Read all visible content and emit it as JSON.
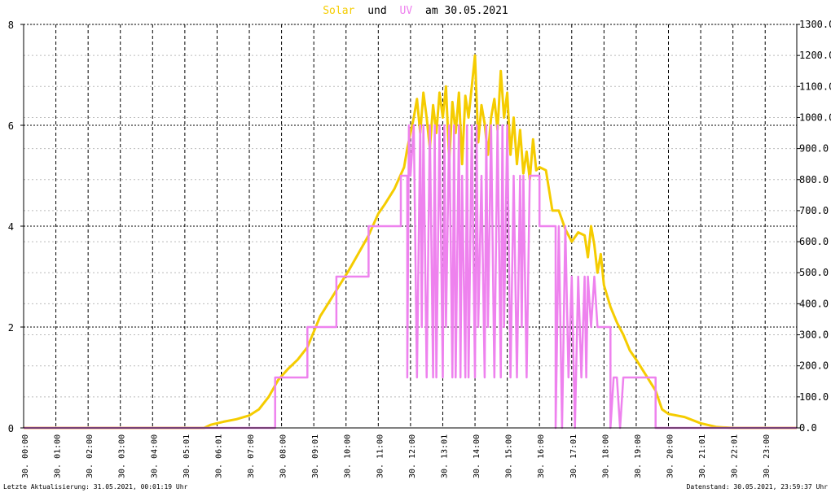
{
  "chart_data": {
    "type": "line",
    "title": {
      "series1": "Solar",
      "connector": "und",
      "series2": "UV",
      "suffix": "am 30.05.2021"
    },
    "x_ticks": [
      "30. 00:00",
      "30. 01:00",
      "30. 02:00",
      "30. 03:00",
      "30. 04:00",
      "30. 05:01",
      "30. 06:01",
      "30. 07:00",
      "30. 08:00",
      "30. 09:01",
      "30. 10:00",
      "30. 11:00",
      "30. 12:00",
      "30. 13:01",
      "30. 14:00",
      "30. 15:00",
      "30. 16:00",
      "30. 17:01",
      "30. 18:00",
      "30. 19:00",
      "30. 20:00",
      "30. 21:01",
      "30. 22:01",
      "30. 23:00"
    ],
    "x_range_hours": [
      0,
      23.98
    ],
    "y_left": {
      "min": 0,
      "max": 8,
      "ticks": [
        "0",
        "2",
        "4",
        "6",
        "8"
      ]
    },
    "y_right": {
      "min": 0,
      "max": 1300,
      "ticks": [
        "0.0",
        "100.0",
        "200.0",
        "300.0",
        "400.0",
        "500.0",
        "600.0",
        "700.0",
        "800.0",
        "900.0",
        "1000.0",
        "1100.0",
        "1200.0",
        "1300.0"
      ]
    },
    "grid": true,
    "series": [
      {
        "name": "Solar",
        "axis": "right",
        "color": "#f5cc00",
        "points": [
          [
            0,
            0
          ],
          [
            5.6,
            0
          ],
          [
            5.8,
            10
          ],
          [
            6.2,
            20
          ],
          [
            6.6,
            28
          ],
          [
            7.0,
            40
          ],
          [
            7.3,
            60
          ],
          [
            7.6,
            100
          ],
          [
            7.9,
            155
          ],
          [
            8.2,
            190
          ],
          [
            8.5,
            220
          ],
          [
            8.8,
            260
          ],
          [
            9.0,
            310
          ],
          [
            9.2,
            360
          ],
          [
            9.5,
            410
          ],
          [
            9.8,
            460
          ],
          [
            10.1,
            510
          ],
          [
            10.4,
            565
          ],
          [
            10.7,
            620
          ],
          [
            11.0,
            690
          ],
          [
            11.2,
            720
          ],
          [
            11.5,
            770
          ],
          [
            11.8,
            840
          ],
          [
            11.9,
            900
          ],
          [
            12.1,
            1000
          ],
          [
            12.2,
            1060
          ],
          [
            12.3,
            950
          ],
          [
            12.4,
            1080
          ],
          [
            12.5,
            1000
          ],
          [
            12.6,
            900
          ],
          [
            12.7,
            1040
          ],
          [
            12.8,
            950
          ],
          [
            12.9,
            1080
          ],
          [
            13.0,
            1000
          ],
          [
            13.1,
            1100
          ],
          [
            13.2,
            860
          ],
          [
            13.3,
            1050
          ],
          [
            13.4,
            950
          ],
          [
            13.5,
            1080
          ],
          [
            13.6,
            850
          ],
          [
            13.7,
            1070
          ],
          [
            13.8,
            1000
          ],
          [
            13.9,
            1100
          ],
          [
            14.0,
            1200
          ],
          [
            14.1,
            920
          ],
          [
            14.2,
            1040
          ],
          [
            14.3,
            980
          ],
          [
            14.4,
            880
          ],
          [
            14.5,
            1000
          ],
          [
            14.6,
            1060
          ],
          [
            14.7,
            960
          ],
          [
            14.8,
            1150
          ],
          [
            14.9,
            1000
          ],
          [
            15.0,
            1080
          ],
          [
            15.1,
            880
          ],
          [
            15.2,
            1000
          ],
          [
            15.3,
            850
          ],
          [
            15.4,
            960
          ],
          [
            15.5,
            820
          ],
          [
            15.6,
            890
          ],
          [
            15.7,
            800
          ],
          [
            15.8,
            930
          ],
          [
            15.9,
            830
          ],
          [
            16.0,
            840
          ],
          [
            16.2,
            830
          ],
          [
            16.4,
            700
          ],
          [
            16.6,
            700
          ],
          [
            16.8,
            640
          ],
          [
            17.0,
            600
          ],
          [
            17.2,
            630
          ],
          [
            17.4,
            620
          ],
          [
            17.5,
            550
          ],
          [
            17.6,
            650
          ],
          [
            17.7,
            590
          ],
          [
            17.8,
            500
          ],
          [
            17.9,
            560
          ],
          [
            18.0,
            460
          ],
          [
            18.2,
            390
          ],
          [
            18.4,
            340
          ],
          [
            18.6,
            300
          ],
          [
            18.8,
            250
          ],
          [
            19.0,
            220
          ],
          [
            19.3,
            170
          ],
          [
            19.6,
            120
          ],
          [
            19.8,
            60
          ],
          [
            20.0,
            45
          ],
          [
            20.5,
            35
          ],
          [
            21.0,
            15
          ],
          [
            21.5,
            3
          ],
          [
            22.0,
            0
          ],
          [
            23.98,
            0
          ]
        ]
      },
      {
        "name": "UV",
        "axis": "left",
        "color": "#ee82ee",
        "points": [
          [
            0,
            0
          ],
          [
            7.8,
            0
          ],
          [
            7.8,
            1
          ],
          [
            8.8,
            1
          ],
          [
            8.8,
            2
          ],
          [
            9.7,
            2
          ],
          [
            9.7,
            3
          ],
          [
            10.7,
            3
          ],
          [
            10.7,
            4
          ],
          [
            11.7,
            4
          ],
          [
            11.7,
            5
          ],
          [
            11.9,
            5
          ],
          [
            11.9,
            1
          ],
          [
            11.95,
            6
          ],
          [
            12.0,
            5
          ],
          [
            12.1,
            6
          ],
          [
            12.2,
            1
          ],
          [
            12.3,
            6
          ],
          [
            12.35,
            2
          ],
          [
            12.4,
            6
          ],
          [
            12.5,
            1
          ],
          [
            12.6,
            6
          ],
          [
            12.7,
            1
          ],
          [
            12.75,
            6
          ],
          [
            12.8,
            1
          ],
          [
            12.9,
            6
          ],
          [
            13.0,
            1
          ],
          [
            13.05,
            6
          ],
          [
            13.1,
            2
          ],
          [
            13.2,
            6
          ],
          [
            13.3,
            1
          ],
          [
            13.35,
            6
          ],
          [
            13.4,
            1
          ],
          [
            13.5,
            6
          ],
          [
            13.55,
            1
          ],
          [
            13.6,
            5
          ],
          [
            13.7,
            1
          ],
          [
            13.75,
            6
          ],
          [
            13.8,
            1
          ],
          [
            13.9,
            6
          ],
          [
            14.0,
            1
          ],
          [
            14.05,
            6
          ],
          [
            14.1,
            2
          ],
          [
            14.2,
            5
          ],
          [
            14.3,
            1
          ],
          [
            14.35,
            6
          ],
          [
            14.4,
            2
          ],
          [
            14.5,
            6
          ],
          [
            14.6,
            1
          ],
          [
            14.7,
            6
          ],
          [
            14.8,
            1
          ],
          [
            14.85,
            6
          ],
          [
            14.9,
            2
          ],
          [
            15.0,
            6
          ],
          [
            15.1,
            1
          ],
          [
            15.2,
            5
          ],
          [
            15.3,
            1
          ],
          [
            15.4,
            5
          ],
          [
            15.45,
            2
          ],
          [
            15.5,
            5
          ],
          [
            15.6,
            1
          ],
          [
            15.7,
            5
          ],
          [
            16.0,
            5
          ],
          [
            16.0,
            4
          ],
          [
            16.5,
            4
          ],
          [
            16.5,
            0
          ],
          [
            16.6,
            4
          ],
          [
            16.7,
            0
          ],
          [
            16.8,
            4
          ],
          [
            16.9,
            1
          ],
          [
            17.0,
            3
          ],
          [
            17.1,
            0
          ],
          [
            17.2,
            3
          ],
          [
            17.3,
            1
          ],
          [
            17.4,
            3
          ],
          [
            17.45,
            1
          ],
          [
            17.5,
            3
          ],
          [
            17.6,
            2
          ],
          [
            17.7,
            3
          ],
          [
            17.8,
            2
          ],
          [
            18.2,
            2
          ],
          [
            18.2,
            0
          ],
          [
            18.3,
            1
          ],
          [
            18.4,
            1
          ],
          [
            18.5,
            0
          ],
          [
            18.6,
            1
          ],
          [
            19.6,
            1
          ],
          [
            19.6,
            0
          ],
          [
            23.98,
            0
          ]
        ]
      }
    ]
  },
  "footer": {
    "left": "Letzte Aktualisierung: 31.05.2021, 00:01:19 Uhr",
    "right": "Datenstand: 30.05.2021, 23:59:37 Uhr"
  }
}
